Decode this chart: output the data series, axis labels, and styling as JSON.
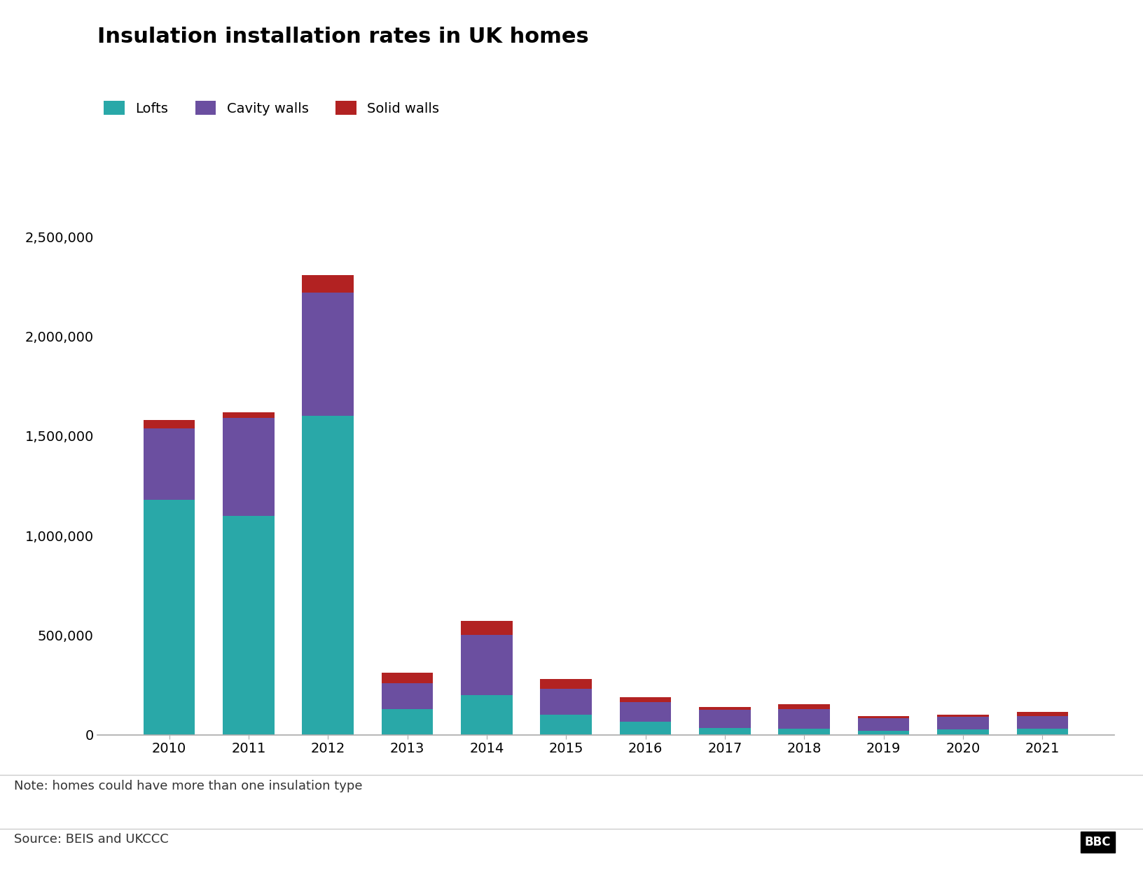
{
  "title": "Insulation installation rates in UK homes",
  "years": [
    2010,
    2011,
    2012,
    2013,
    2014,
    2015,
    2016,
    2017,
    2018,
    2019,
    2020,
    2021
  ],
  "lofts": [
    1180000,
    1100000,
    1600000,
    130000,
    200000,
    100000,
    65000,
    35000,
    30000,
    18000,
    25000,
    30000
  ],
  "cavity_walls": [
    360000,
    490000,
    620000,
    130000,
    300000,
    130000,
    100000,
    90000,
    100000,
    65000,
    65000,
    65000
  ],
  "solid_walls": [
    40000,
    30000,
    90000,
    50000,
    70000,
    50000,
    25000,
    15000,
    25000,
    12000,
    12000,
    20000
  ],
  "colors": {
    "lofts": "#29a8a8",
    "cavity_walls": "#6b4fa0",
    "solid_walls": "#b22222"
  },
  "legend_labels": [
    "Lofts",
    "Cavity walls",
    "Solid walls"
  ],
  "ylim": [
    0,
    2700000
  ],
  "yticks": [
    0,
    500000,
    1000000,
    1500000,
    2000000,
    2500000
  ],
  "note": "Note: homes could have more than one insulation type",
  "source": "Source: BEIS and UKCCC",
  "background_color": "#ffffff",
  "title_fontsize": 22,
  "tick_fontsize": 14,
  "legend_fontsize": 14,
  "note_fontsize": 13,
  "source_fontsize": 13,
  "bar_width": 0.65
}
